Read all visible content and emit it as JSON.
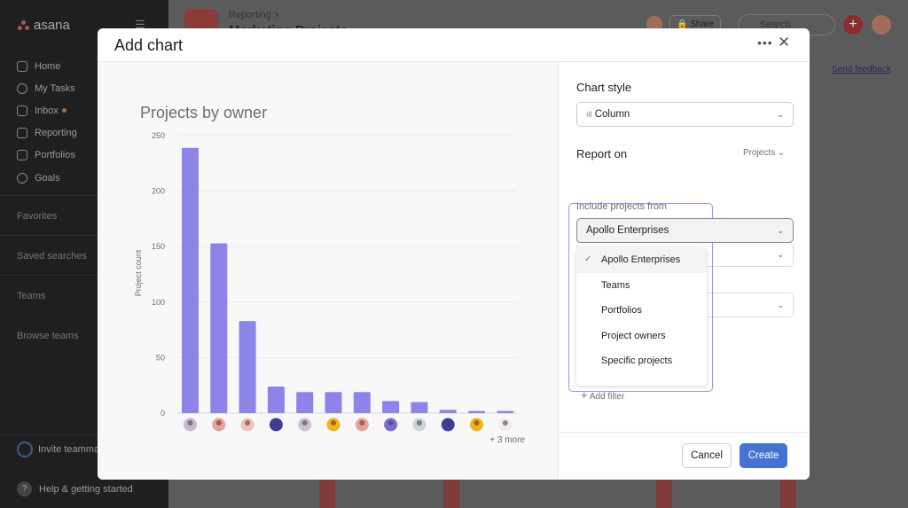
{
  "app": {
    "logo": "asana",
    "nav": [
      "Home",
      "My Tasks",
      "Inbox",
      "Reporting",
      "Portfolios",
      "Goals"
    ],
    "sections": [
      "Favorites",
      "Saved searches",
      "Teams",
      "Browse teams"
    ],
    "invite": "Invite teammates",
    "help": "Help & getting started"
  },
  "header": {
    "breadcrumb": "Reporting >",
    "title": "Marketing Projects",
    "share": "Share",
    "search_placeholder": "Search",
    "send_feedback": "Send feedback"
  },
  "modal": {
    "title": "Add chart",
    "chart_style_label": "Chart style",
    "chart_style_value": "Column",
    "report_on_label": "Report on",
    "report_on_value": "Projects",
    "include_label": "Include projects from",
    "include_value": "Apollo Enterprises",
    "dropdown": [
      {
        "label": "Apollo Enterprises",
        "selected": true
      },
      {
        "label": "Teams"
      },
      {
        "label": "Portfolios"
      },
      {
        "label": "Project owners"
      },
      {
        "label": "Specific projects"
      }
    ],
    "add_filter": "Add filter",
    "cancel": "Cancel",
    "create": "Create",
    "more_label": "+ 3 more"
  },
  "colors": {
    "bar": "#8d84e8",
    "create": "#4573d2",
    "highlight": "#a98ff0"
  },
  "chart_data": {
    "type": "bar",
    "title": "Projects by owner",
    "ylabel": "Project count",
    "xlabel": "",
    "ylim": [
      0,
      250
    ],
    "yticks": [
      0,
      50,
      100,
      150,
      200,
      250
    ],
    "grid": true,
    "categories": [
      "owner avatar 1",
      "owner avatar 2",
      "owner avatar 3",
      "owner avatar 4",
      "owner avatar 5",
      "owner avatar 6",
      "owner avatar 7",
      "owner avatar 8",
      "owner avatar 9",
      "owner avatar 10",
      "owner avatar 11",
      "owner avatar 12"
    ],
    "avatar_colors": [
      "#c9b6d8",
      "#e9a19b",
      "#f0c1b8",
      "#3b3da8",
      "#c7c0d8",
      "#f1b21c",
      "#e9a19b",
      "#7a6fd0",
      "#c8d6dc",
      "#3b3da8",
      "#f1b21c",
      "#eee"
    ],
    "values": [
      239,
      153,
      83,
      24,
      19,
      19,
      19,
      11,
      10,
      3,
      2,
      2
    ]
  }
}
